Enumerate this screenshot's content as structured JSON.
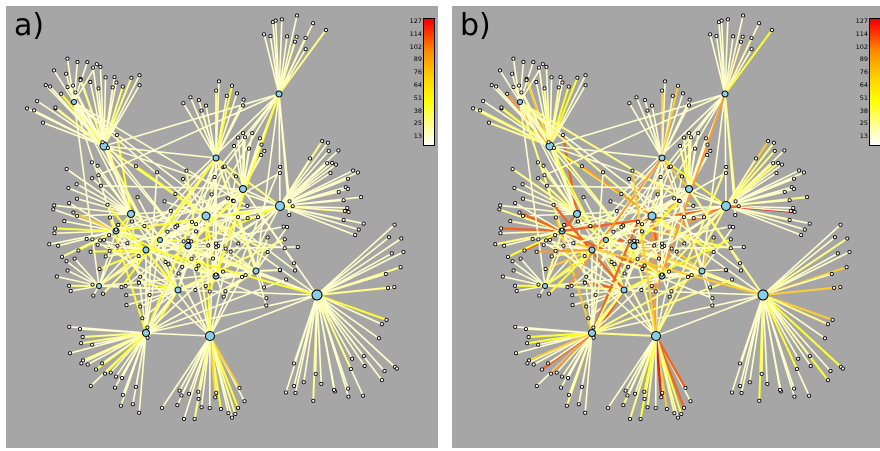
{
  "panels": [
    {
      "label": "a)"
    },
    {
      "label": "b)"
    }
  ],
  "colorbar": {
    "ticks": [
      "127",
      "114",
      "102",
      "89",
      "76",
      "64",
      "51",
      "38",
      "25",
      "13"
    ],
    "min": 13,
    "max": 127
  },
  "colors": {
    "background": "#a6a6a6",
    "hub_node": "#87ceeb",
    "leaf_node": "#ffffff",
    "edge_low": "#ffffcc",
    "edge_mid": "#ffff00",
    "edge_high": "#ff0000"
  }
}
